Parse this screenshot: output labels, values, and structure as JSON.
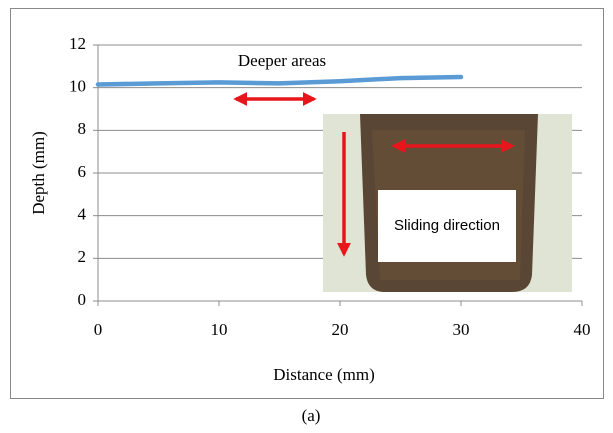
{
  "chart_data": {
    "type": "line",
    "x": [
      0,
      5,
      10,
      15,
      20,
      25,
      30
    ],
    "values": [
      10.15,
      10.2,
      10.25,
      10.2,
      10.3,
      10.45,
      10.5
    ],
    "color": "#5b9bd5",
    "xlim": [
      0,
      40
    ],
    "xticks": [
      0,
      10,
      20,
      30,
      40
    ],
    "ylim": [
      0,
      12
    ],
    "yticks": [
      0,
      2,
      4,
      6,
      8,
      10,
      12
    ],
    "grid": true,
    "xlabel": "Distance (mm)",
    "ylabel": "Depth (mm)",
    "annotations": [
      "Deeper areas",
      "Sliding direction"
    ],
    "caption": "(a)"
  }
}
